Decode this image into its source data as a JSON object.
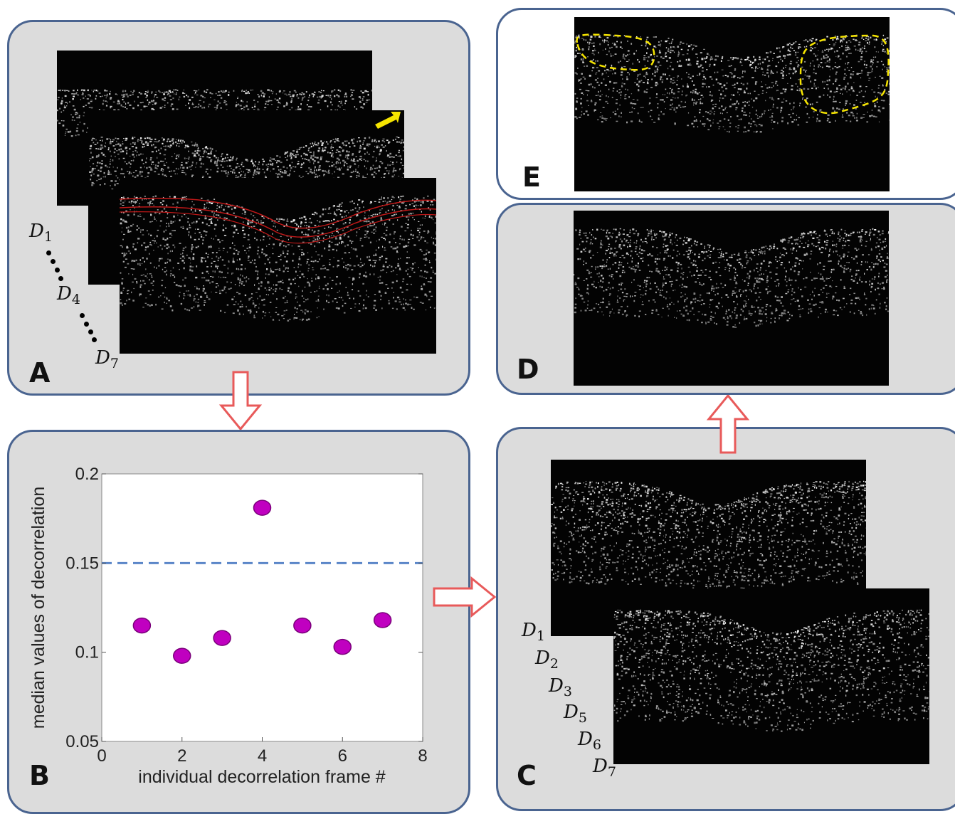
{
  "panels": {
    "A": {
      "label": "A"
    },
    "B": {
      "label": "B"
    },
    "C": {
      "label": "C"
    },
    "D": {
      "label": "D"
    },
    "E": {
      "label": "E"
    }
  },
  "frame_labels_A": [
    {
      "base": "D",
      "sub": "1"
    },
    {
      "base": "D",
      "sub": "4"
    },
    {
      "base": "D",
      "sub": "7"
    }
  ],
  "frame_labels_C": [
    {
      "base": "D",
      "sub": "1"
    },
    {
      "base": "D",
      "sub": "2"
    },
    {
      "base": "D",
      "sub": "3"
    },
    {
      "base": "D",
      "sub": "5"
    },
    {
      "base": "D",
      "sub": "6"
    },
    {
      "base": "D",
      "sub": "7"
    }
  ],
  "colors": {
    "panel_border": "#4a6490",
    "panel_fill": "#dcdcdc",
    "flow_arrow": "#e85a5a",
    "marker": "#c000c0",
    "threshold": "#5b86c8",
    "annotation_yellow": "#f5e400",
    "segmentation_red": "#c01818"
  },
  "chart_data": {
    "type": "scatter",
    "title": "",
    "xlabel": "individual decorrelation frame #",
    "ylabel": "median values of decorrelation",
    "xlim": [
      0,
      8
    ],
    "ylim": [
      0.05,
      0.2
    ],
    "xticks": [
      "0",
      "2",
      "4",
      "6",
      "8"
    ],
    "yticks": [
      "0.05",
      "0.1",
      "0.15",
      "0.2"
    ],
    "x": [
      1,
      2,
      3,
      4,
      5,
      6,
      7
    ],
    "y": [
      0.115,
      0.098,
      0.108,
      0.181,
      0.115,
      0.103,
      0.118
    ],
    "threshold": 0.15,
    "grid": false,
    "legend": "none"
  }
}
